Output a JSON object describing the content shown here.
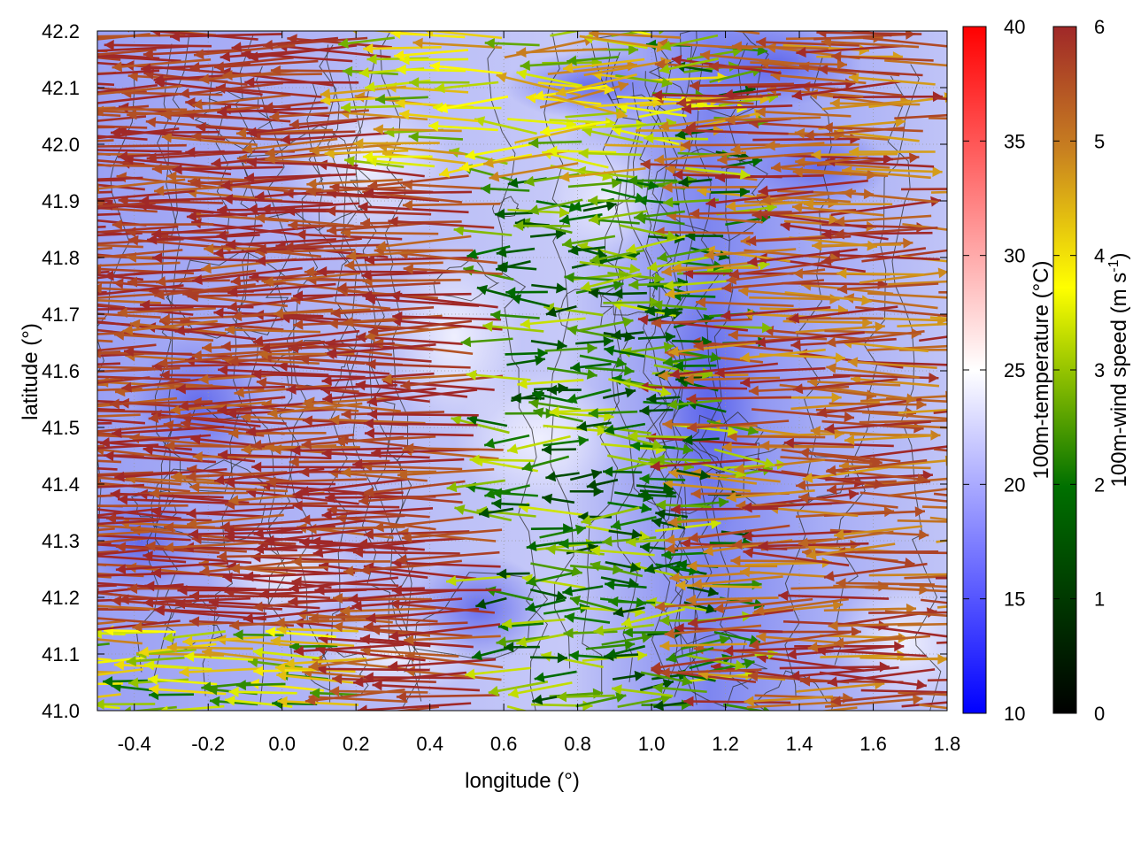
{
  "chart_data": {
    "type": "vector-field",
    "title": "",
    "xlabel": "longitude (°)",
    "ylabel": "latitude (°)",
    "xlim": [
      -0.5,
      1.8
    ],
    "ylim": [
      41.0,
      42.2
    ],
    "xticks": [
      -0.4,
      -0.2,
      0.0,
      0.2,
      0.4,
      0.6,
      0.8,
      1.0,
      1.2,
      1.4,
      1.6,
      1.8
    ],
    "xtick_labels": [
      "-0.4",
      "-0.2",
      "0.0",
      "0.2",
      "0.4",
      "0.6",
      "0.8",
      "1.0",
      "1.2",
      "1.4",
      "1.6",
      "1.8"
    ],
    "yticks": [
      41.0,
      41.1,
      41.2,
      41.3,
      41.4,
      41.5,
      41.6,
      41.7,
      41.8,
      41.9,
      42.0,
      42.1,
      42.2
    ],
    "ytick_labels": [
      "41.0",
      "41.1",
      "41.2",
      "41.3",
      "41.4",
      "41.5",
      "41.6",
      "41.7",
      "41.8",
      "41.9",
      "42.0",
      "42.1",
      "42.2"
    ],
    "grid": true,
    "background_field": {
      "name": "100m-temperature",
      "colorbar_label": "100m-temperature (°C)",
      "range": [
        10,
        40
      ],
      "ticks": [
        10,
        15,
        20,
        25,
        30,
        35,
        40
      ],
      "tick_labels": [
        "10",
        "15",
        "20",
        "25",
        "30",
        "35",
        "40"
      ],
      "colors": [
        "#0000ff",
        "#ffffff",
        "#ff0000"
      ],
      "approx_value_range": [
        17,
        24
      ]
    },
    "vector_field": {
      "name": "100m-wind speed",
      "colorbar_label": "100m-wind speed (m s",
      "colorbar_label_sup": "-1",
      "colorbar_label_end": ")",
      "range": [
        0,
        6
      ],
      "ticks": [
        0,
        1,
        2,
        3,
        4,
        5,
        6
      ],
      "tick_labels": [
        "0",
        "1",
        "2",
        "3",
        "4",
        "5",
        "6"
      ],
      "colors": [
        "#000000",
        "#007000",
        "#ffff00",
        "#c88020",
        "#a02828"
      ],
      "summary": "Strong easterly flow (~6 m/s) dominates west of lon 0.6 and east of lon 1.3; weak, variable winds (1-3 m/s) in a north-south band near lon 0.8-1.2."
    },
    "contours": {
      "color": "#333333",
      "description": "terrain height contour lines"
    }
  }
}
